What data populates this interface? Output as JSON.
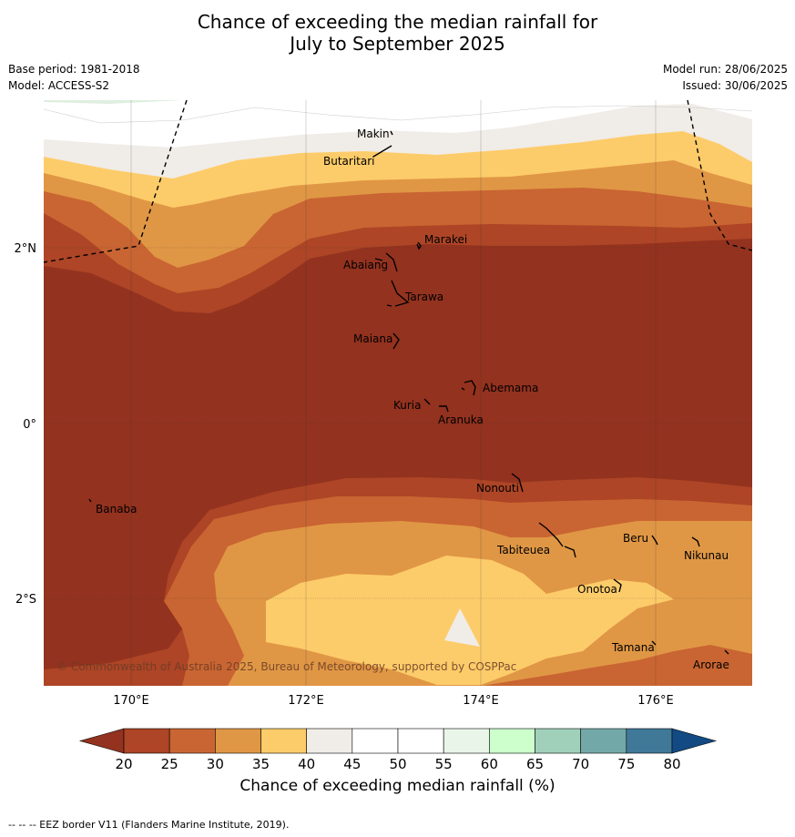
{
  "title_line1": "Chance of exceeding the median rainfall for",
  "title_line2": "July to September 2025",
  "base_period": "Base period: 1981-2018",
  "model": "Model: ACCESS-S2",
  "model_run": "Model run: 28/06/2025",
  "issued": "Issued: 30/06/2025",
  "copyright": "© Commonwealth of Australia 2025, Bureau of Meteorology, supported by COSPPac",
  "footer": "--  --  -- EEZ border V11 (Flanders Marine Institute, 2019).",
  "lat_labels": [
    "2°N",
    "0°",
    "2°S"
  ],
  "lon_labels": [
    "170°E",
    "172°E",
    "174°E",
    "176°E"
  ],
  "islands": [
    "Makin",
    "Butaritari",
    "Marakei",
    "Abaiang",
    "Tarawa",
    "Maiana",
    "Abemama",
    "Kuria",
    "Aranuka",
    "Nonouti",
    "Banaba",
    "Beru",
    "Nikunau",
    "Tabiteuea",
    "Onotoa",
    "Tamana",
    "Arorae"
  ],
  "colorbar": {
    "title": "Chance of exceeding median rainfall (%)",
    "ticks": [
      "20",
      "25",
      "30",
      "35",
      "40",
      "45",
      "50",
      "55",
      "60",
      "65",
      "70",
      "75",
      "80"
    ],
    "colors": {
      "below20": "#93321f",
      "20-25": "#ad4526",
      "25-30": "#c96532",
      "30-35": "#e09745",
      "35-40": "#fdcc6a",
      "40-45": "#f0ece7",
      "45-50": "#ffffff",
      "50-55": "#ffffff",
      "55-60": "#eaf5ea",
      "60-65": "#ccffcc",
      "65-70": "#a0d0ba",
      "70-75": "#73a8a8",
      "75-80": "#407898",
      "above80": "#134a84"
    }
  }
}
